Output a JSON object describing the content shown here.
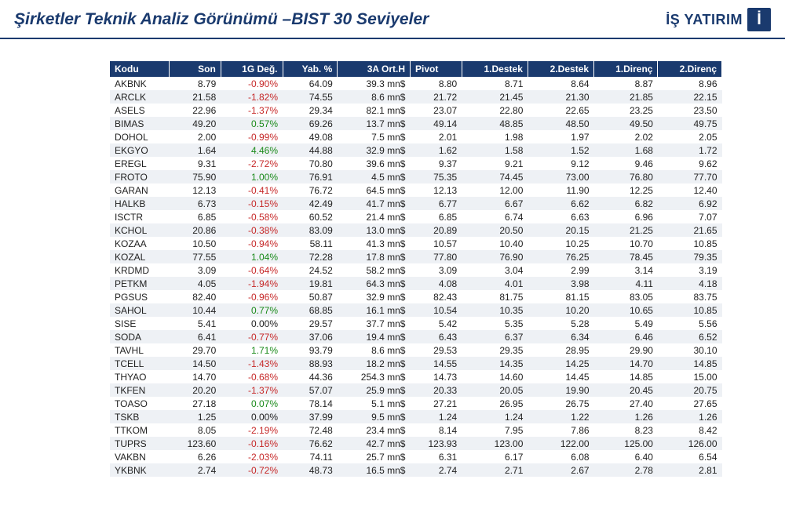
{
  "header": {
    "title": "Şirketler Teknik Analiz Görünümü –BIST 30 Seviyeler",
    "brand": "İŞ YATIRIM",
    "brand_icon": "İ"
  },
  "table": {
    "columns": [
      "Kodu",
      "Son",
      "1G Değ.",
      "Yab. %",
      "3A Ort.H",
      "Pivot",
      "1.Destek",
      "2.Destek",
      "1.Direnç",
      "2.Direnç"
    ],
    "col_align_left": [
      0,
      5
    ],
    "rows": [
      {
        "kod": "AKBNK",
        "son": "8.79",
        "deg": "-0.90%",
        "yab": "64.09",
        "ort": "39.3 mn$",
        "pivot": "8.80",
        "d1": "8.71",
        "d2": "8.64",
        "r1": "8.87",
        "r2": "8.96"
      },
      {
        "kod": "ARCLK",
        "son": "21.58",
        "deg": "-1.82%",
        "yab": "74.55",
        "ort": "8.6 mn$",
        "pivot": "21.72",
        "d1": "21.45",
        "d2": "21.30",
        "r1": "21.85",
        "r2": "22.15"
      },
      {
        "kod": "ASELS",
        "son": "22.96",
        "deg": "-1.37%",
        "yab": "29.34",
        "ort": "82.1 mn$",
        "pivot": "23.07",
        "d1": "22.80",
        "d2": "22.65",
        "r1": "23.25",
        "r2": "23.50"
      },
      {
        "kod": "BIMAS",
        "son": "49.20",
        "deg": "0.57%",
        "yab": "69.26",
        "ort": "13.7 mn$",
        "pivot": "49.14",
        "d1": "48.85",
        "d2": "48.50",
        "r1": "49.50",
        "r2": "49.75"
      },
      {
        "kod": "DOHOL",
        "son": "2.00",
        "deg": "-0.99%",
        "yab": "49.08",
        "ort": "7.5 mn$",
        "pivot": "2.01",
        "d1": "1.98",
        "d2": "1.97",
        "r1": "2.02",
        "r2": "2.05"
      },
      {
        "kod": "EKGYO",
        "son": "1.64",
        "deg": "4.46%",
        "yab": "44.88",
        "ort": "32.9 mn$",
        "pivot": "1.62",
        "d1": "1.58",
        "d2": "1.52",
        "r1": "1.68",
        "r2": "1.72"
      },
      {
        "kod": "EREGL",
        "son": "9.31",
        "deg": "-2.72%",
        "yab": "70.80",
        "ort": "39.6 mn$",
        "pivot": "9.37",
        "d1": "9.21",
        "d2": "9.12",
        "r1": "9.46",
        "r2": "9.62"
      },
      {
        "kod": "FROTO",
        "son": "75.90",
        "deg": "1.00%",
        "yab": "76.91",
        "ort": "4.5 mn$",
        "pivot": "75.35",
        "d1": "74.45",
        "d2": "73.00",
        "r1": "76.80",
        "r2": "77.70"
      },
      {
        "kod": "GARAN",
        "son": "12.13",
        "deg": "-0.41%",
        "yab": "76.72",
        "ort": "64.5 mn$",
        "pivot": "12.13",
        "d1": "12.00",
        "d2": "11.90",
        "r1": "12.25",
        "r2": "12.40"
      },
      {
        "kod": "HALKB",
        "son": "6.73",
        "deg": "-0.15%",
        "yab": "42.49",
        "ort": "41.7 mn$",
        "pivot": "6.77",
        "d1": "6.67",
        "d2": "6.62",
        "r1": "6.82",
        "r2": "6.92"
      },
      {
        "kod": "ISCTR",
        "son": "6.85",
        "deg": "-0.58%",
        "yab": "60.52",
        "ort": "21.4 mn$",
        "pivot": "6.85",
        "d1": "6.74",
        "d2": "6.63",
        "r1": "6.96",
        "r2": "7.07"
      },
      {
        "kod": "KCHOL",
        "son": "20.86",
        "deg": "-0.38%",
        "yab": "83.09",
        "ort": "13.0 mn$",
        "pivot": "20.89",
        "d1": "20.50",
        "d2": "20.15",
        "r1": "21.25",
        "r2": "21.65"
      },
      {
        "kod": "KOZAA",
        "son": "10.50",
        "deg": "-0.94%",
        "yab": "58.11",
        "ort": "41.3 mn$",
        "pivot": "10.57",
        "d1": "10.40",
        "d2": "10.25",
        "r1": "10.70",
        "r2": "10.85"
      },
      {
        "kod": "KOZAL",
        "son": "77.55",
        "deg": "1.04%",
        "yab": "72.28",
        "ort": "17.8 mn$",
        "pivot": "77.80",
        "d1": "76.90",
        "d2": "76.25",
        "r1": "78.45",
        "r2": "79.35"
      },
      {
        "kod": "KRDMD",
        "son": "3.09",
        "deg": "-0.64%",
        "yab": "24.52",
        "ort": "58.2 mn$",
        "pivot": "3.09",
        "d1": "3.04",
        "d2": "2.99",
        "r1": "3.14",
        "r2": "3.19"
      },
      {
        "kod": "PETKM",
        "son": "4.05",
        "deg": "-1.94%",
        "yab": "19.81",
        "ort": "64.3 mn$",
        "pivot": "4.08",
        "d1": "4.01",
        "d2": "3.98",
        "r1": "4.11",
        "r2": "4.18"
      },
      {
        "kod": "PGSUS",
        "son": "82.40",
        "deg": "-0.96%",
        "yab": "50.87",
        "ort": "32.9 mn$",
        "pivot": "82.43",
        "d1": "81.75",
        "d2": "81.15",
        "r1": "83.05",
        "r2": "83.75"
      },
      {
        "kod": "SAHOL",
        "son": "10.44",
        "deg": "0.77%",
        "yab": "68.85",
        "ort": "16.1 mn$",
        "pivot": "10.54",
        "d1": "10.35",
        "d2": "10.20",
        "r1": "10.65",
        "r2": "10.85"
      },
      {
        "kod": "SISE",
        "son": "5.41",
        "deg": "0.00%",
        "yab": "29.57",
        "ort": "37.7 mn$",
        "pivot": "5.42",
        "d1": "5.35",
        "d2": "5.28",
        "r1": "5.49",
        "r2": "5.56"
      },
      {
        "kod": "SODA",
        "son": "6.41",
        "deg": "-0.77%",
        "yab": "37.06",
        "ort": "19.4 mn$",
        "pivot": "6.43",
        "d1": "6.37",
        "d2": "6.34",
        "r1": "6.46",
        "r2": "6.52"
      },
      {
        "kod": "TAVHL",
        "son": "29.70",
        "deg": "1.71%",
        "yab": "93.79",
        "ort": "8.6 mn$",
        "pivot": "29.53",
        "d1": "29.35",
        "d2": "28.95",
        "r1": "29.90",
        "r2": "30.10"
      },
      {
        "kod": "TCELL",
        "son": "14.50",
        "deg": "-1.43%",
        "yab": "88.93",
        "ort": "18.2 mn$",
        "pivot": "14.55",
        "d1": "14.35",
        "d2": "14.25",
        "r1": "14.70",
        "r2": "14.85"
      },
      {
        "kod": "THYAO",
        "son": "14.70",
        "deg": "-0.68%",
        "yab": "44.36",
        "ort": "254.3 mn$",
        "pivot": "14.73",
        "d1": "14.60",
        "d2": "14.45",
        "r1": "14.85",
        "r2": "15.00"
      },
      {
        "kod": "TKFEN",
        "son": "20.20",
        "deg": "-1.37%",
        "yab": "57.07",
        "ort": "25.9 mn$",
        "pivot": "20.33",
        "d1": "20.05",
        "d2": "19.90",
        "r1": "20.45",
        "r2": "20.75"
      },
      {
        "kod": "TOASO",
        "son": "27.18",
        "deg": "0.07%",
        "yab": "78.14",
        "ort": "5.1 mn$",
        "pivot": "27.21",
        "d1": "26.95",
        "d2": "26.75",
        "r1": "27.40",
        "r2": "27.65"
      },
      {
        "kod": "TSKB",
        "son": "1.25",
        "deg": "0.00%",
        "yab": "37.99",
        "ort": "9.5 mn$",
        "pivot": "1.24",
        "d1": "1.24",
        "d2": "1.22",
        "r1": "1.26",
        "r2": "1.26"
      },
      {
        "kod": "TTKOM",
        "son": "8.05",
        "deg": "-2.19%",
        "yab": "72.48",
        "ort": "23.4 mn$",
        "pivot": "8.14",
        "d1": "7.95",
        "d2": "7.86",
        "r1": "8.23",
        "r2": "8.42"
      },
      {
        "kod": "TUPRS",
        "son": "123.60",
        "deg": "-0.16%",
        "yab": "76.62",
        "ort": "42.7 mn$",
        "pivot": "123.93",
        "d1": "123.00",
        "d2": "122.00",
        "r1": "125.00",
        "r2": "126.00"
      },
      {
        "kod": "VAKBN",
        "son": "6.26",
        "deg": "-2.03%",
        "yab": "74.11",
        "ort": "25.7 mn$",
        "pivot": "6.31",
        "d1": "6.17",
        "d2": "6.08",
        "r1": "6.40",
        "r2": "6.54"
      },
      {
        "kod": "YKBNK",
        "son": "2.74",
        "deg": "-0.72%",
        "yab": "48.73",
        "ort": "16.5 mn$",
        "pivot": "2.74",
        "d1": "2.71",
        "d2": "2.67",
        "r1": "2.78",
        "r2": "2.81"
      }
    ]
  },
  "styling": {
    "brand_color": "#1a3a6e",
    "row_alt_bg": "#eef1f5",
    "positive_color": "#1a8a1a",
    "negative_color": "#c62828",
    "font_size_table": 12,
    "font_size_title": 21
  }
}
